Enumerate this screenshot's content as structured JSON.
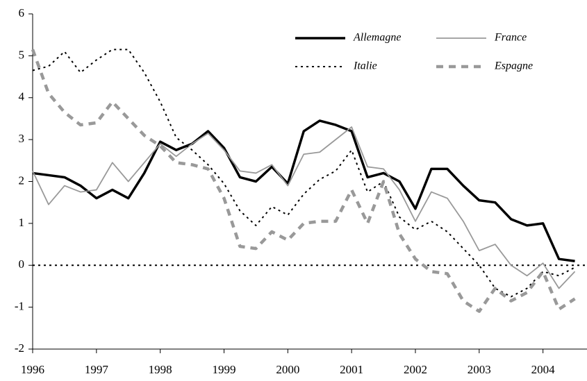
{
  "chart_data": {
    "type": "line",
    "x": [
      1996,
      1996.25,
      1996.5,
      1996.75,
      1997,
      1997.25,
      1997.5,
      1997.75,
      1998,
      1998.25,
      1998.5,
      1998.75,
      1999,
      1999.25,
      1999.5,
      1999.75,
      2000,
      2000.25,
      2000.5,
      2000.75,
      2001,
      2001.25,
      2001.5,
      2001.75,
      2002,
      2002.25,
      2002.5,
      2002.75,
      2003,
      2003.25,
      2003.5,
      2003.75,
      2004,
      2004.25,
      2004.5
    ],
    "series": [
      {
        "name": "Allemagne",
        "color": "#000000",
        "line_width": 3.5,
        "line_style": "solid",
        "values": [
          2.2,
          2.15,
          2.1,
          1.9,
          1.6,
          1.8,
          1.6,
          2.2,
          2.95,
          2.75,
          2.9,
          3.2,
          2.8,
          2.1,
          2.0,
          2.35,
          1.95,
          3.2,
          3.45,
          3.35,
          3.2,
          2.1,
          2.2,
          2.0,
          1.35,
          2.3,
          2.3,
          1.9,
          1.55,
          1.5,
          1.1,
          0.95,
          1.0,
          0.15,
          0.1
        ]
      },
      {
        "name": "France",
        "color": "#999999",
        "line_width": 1.8,
        "line_style": "solid",
        "values": [
          2.25,
          1.45,
          1.9,
          1.75,
          1.8,
          2.45,
          2.0,
          2.45,
          2.9,
          2.6,
          2.9,
          3.15,
          2.75,
          2.25,
          2.2,
          2.4,
          1.9,
          2.65,
          2.7,
          3.0,
          3.3,
          2.35,
          2.3,
          1.8,
          1.05,
          1.75,
          1.6,
          1.05,
          0.35,
          0.5,
          0.0,
          -0.25,
          0.05,
          -0.55,
          -0.15
        ]
      },
      {
        "name": "Italie",
        "color": "#000000",
        "line_width": 2,
        "line_style": "dotted",
        "values": [
          4.65,
          4.75,
          5.1,
          4.6,
          4.9,
          5.15,
          5.15,
          4.6,
          3.9,
          3.05,
          2.75,
          2.4,
          1.95,
          1.3,
          0.95,
          1.4,
          1.2,
          1.7,
          2.05,
          2.25,
          2.75,
          1.75,
          2.0,
          1.15,
          0.85,
          1.05,
          0.8,
          0.4,
          0.0,
          -0.55,
          -0.75,
          -0.55,
          -0.15,
          -0.25,
          -0.05
        ]
      },
      {
        "name": "Espagne",
        "color": "#999999",
        "line_width": 4.5,
        "line_style": "dashed",
        "values": [
          5.15,
          4.1,
          3.65,
          3.35,
          3.4,
          3.9,
          3.5,
          3.1,
          2.85,
          2.45,
          2.4,
          2.3,
          1.6,
          0.45,
          0.4,
          0.8,
          0.6,
          1.0,
          1.05,
          1.05,
          1.8,
          1.0,
          2.0,
          0.75,
          0.15,
          -0.15,
          -0.2,
          -0.85,
          -1.1,
          -0.55,
          -0.85,
          -0.65,
          -0.15,
          -1.05,
          -0.8
        ]
      }
    ],
    "xlim": [
      1996,
      2004.69
    ],
    "xticks": [
      1996,
      1997,
      1998,
      1999,
      2000,
      2001,
      2002,
      2003,
      2004
    ],
    "ylim": [
      -2,
      6
    ],
    "yticks": [
      -2,
      -1,
      0,
      1,
      2,
      3,
      4,
      5,
      6
    ],
    "reference_lines": [
      0
    ],
    "legend": "top-right"
  }
}
